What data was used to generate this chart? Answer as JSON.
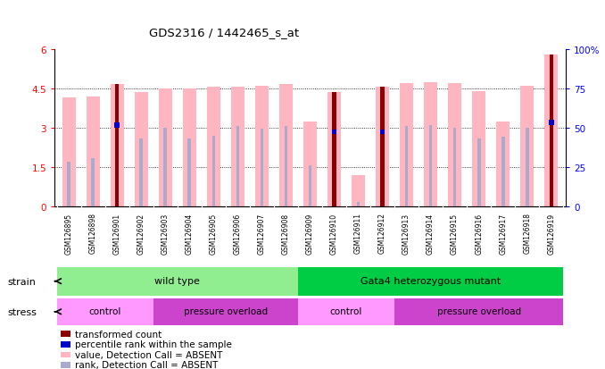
{
  "title": "GDS2316 / 1442465_s_at",
  "samples": [
    "GSM126895",
    "GSM126898",
    "GSM126901",
    "GSM126902",
    "GSM126903",
    "GSM126904",
    "GSM126905",
    "GSM126906",
    "GSM126907",
    "GSM126908",
    "GSM126909",
    "GSM126910",
    "GSM126911",
    "GSM126912",
    "GSM126913",
    "GSM126914",
    "GSM126915",
    "GSM126916",
    "GSM126917",
    "GSM126918",
    "GSM126919"
  ],
  "pink_bar_heights": [
    4.15,
    4.2,
    4.65,
    4.35,
    4.5,
    4.5,
    4.55,
    4.55,
    4.6,
    4.65,
    3.25,
    4.35,
    1.2,
    4.55,
    4.7,
    4.75,
    4.7,
    4.4,
    3.25,
    4.6,
    5.8
  ],
  "light_blue_bar_heights": [
    1.7,
    1.85,
    3.1,
    2.6,
    3.0,
    2.6,
    2.7,
    3.05,
    2.95,
    3.05,
    1.55,
    2.85,
    0.15,
    2.85,
    3.05,
    3.1,
    3.0,
    2.6,
    2.65,
    3.0,
    3.2
  ],
  "dark_red_bar_heights": [
    0,
    0,
    4.65,
    0,
    0,
    0,
    0,
    0,
    0,
    0,
    0,
    4.35,
    0,
    4.55,
    0,
    0,
    0,
    0,
    0,
    0,
    5.8
  ],
  "blue_marker_y": [
    0,
    0,
    3.1,
    0,
    0,
    0,
    0,
    0,
    0,
    0,
    0,
    2.85,
    0,
    2.85,
    0,
    0,
    0,
    0,
    0,
    0,
    3.2
  ],
  "yticks_left": [
    0,
    1.5,
    3.0,
    4.5,
    6
  ],
  "ytick_labels_left": [
    "0",
    "1.5",
    "3",
    "4.5",
    "6"
  ],
  "ytick_labels_right": [
    "0",
    "25",
    "50",
    "75",
    "100%"
  ],
  "pink_color": "#FFB6C1",
  "light_blue_color": "#AAAACC",
  "dark_red_color": "#8B0000",
  "blue_color": "#0000CC",
  "bar_width": 0.55,
  "wt_green": "#90EE90",
  "gata_green": "#00CC44",
  "control_pink": "#FF99FF",
  "pressure_purple": "#CC44CC",
  "xtick_bg": "#C0C0C0",
  "background_color": "#FFFFFF"
}
